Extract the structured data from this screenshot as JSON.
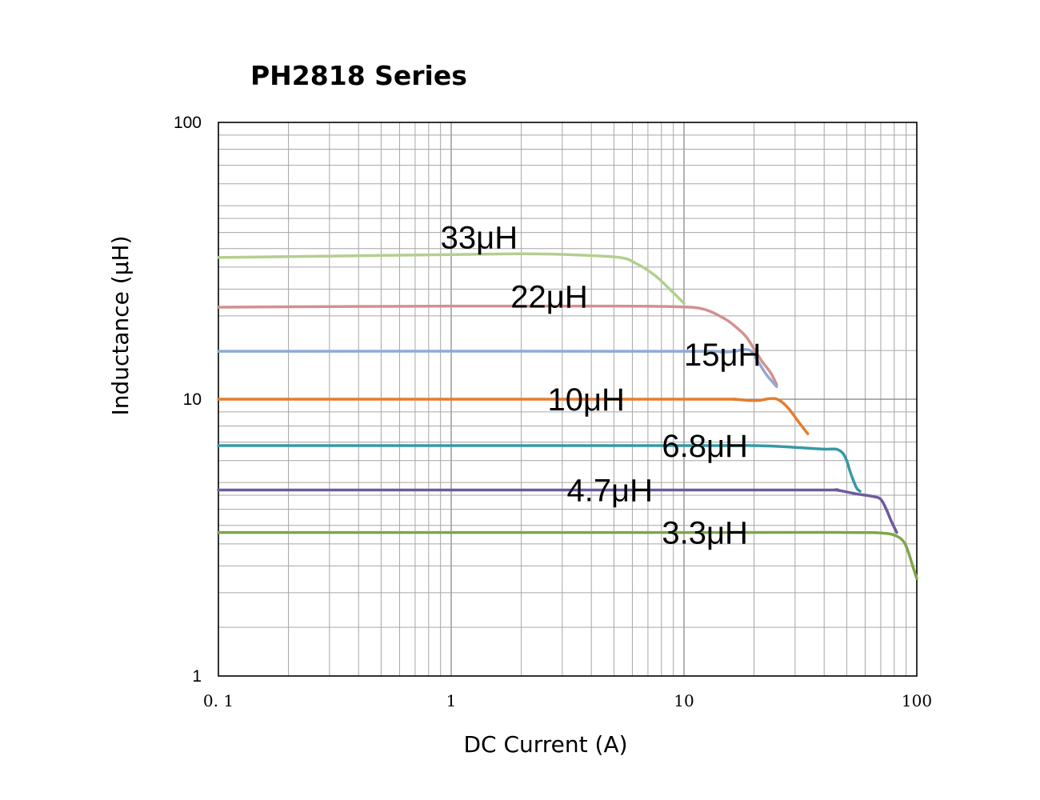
{
  "chart_data": {
    "type": "line",
    "title": "PH2818  Series",
    "xlabel": "DC Current (A)",
    "ylabel": "Inductance (μH)",
    "xscale": "log",
    "yscale": "log",
    "xlim": [
      0.1,
      100
    ],
    "ylim": [
      1,
      100
    ],
    "grid": true,
    "legend": "none",
    "x_ticks": [
      {
        "value": 0.1,
        "label": "0. 1"
      },
      {
        "value": 1,
        "label": "1"
      },
      {
        "value": 10,
        "label": "10"
      },
      {
        "value": 100,
        "label": "100"
      }
    ],
    "y_ticks": [
      {
        "value": 1,
        "label": "1"
      },
      {
        "value": 10,
        "label": "10"
      },
      {
        "value": 100,
        "label": "100"
      }
    ],
    "series": [
      {
        "name": "33μH",
        "color": "#b3cf8e",
        "label_at": {
          "x": 0.9,
          "y": 38.5
        },
        "points": [
          [
            0.1,
            32.5
          ],
          [
            1,
            33.3
          ],
          [
            2,
            33.5
          ],
          [
            3.5,
            33.2
          ],
          [
            5.3,
            32.5
          ],
          [
            6.2,
            31
          ],
          [
            7.5,
            28
          ],
          [
            8.8,
            24.7
          ],
          [
            10,
            22.2
          ]
        ]
      },
      {
        "name": "22μH",
        "color": "#d39090",
        "label_at": {
          "x": 1.8,
          "y": 23.5
        },
        "points": [
          [
            0.1,
            21.5
          ],
          [
            1,
            21.7
          ],
          [
            5,
            21.7
          ],
          [
            9,
            21.6
          ],
          [
            12,
            21.2
          ],
          [
            15,
            19.5
          ],
          [
            17,
            18
          ],
          [
            18.5,
            16.8
          ],
          [
            20,
            15.2
          ],
          [
            21.5,
            13.8
          ],
          [
            23.5,
            12.5
          ],
          [
            25,
            11.3
          ]
        ]
      },
      {
        "name": "15μH",
        "color": "#91a9d6",
        "label_at": {
          "x": 10,
          "y": 14.5
        },
        "points": [
          [
            0.1,
            14.9
          ],
          [
            10,
            14.9
          ],
          [
            14.5,
            14.8
          ],
          [
            16.5,
            14.9
          ],
          [
            18,
            15.1
          ],
          [
            19.5,
            14.9
          ],
          [
            21,
            13.5
          ],
          [
            22.7,
            12.2
          ],
          [
            25,
            11.1
          ]
        ]
      },
      {
        "name": "10μH",
        "color": "#e47c2e",
        "label_at": {
          "x": 3.8,
          "y": 10
        },
        "label_anchor": "middle",
        "points": [
          [
            0.1,
            10
          ],
          [
            10,
            10
          ],
          [
            16,
            10
          ],
          [
            19,
            9.9
          ],
          [
            21,
            9.9
          ],
          [
            23.5,
            10.05
          ],
          [
            25.5,
            9.95
          ],
          [
            28,
            9.3
          ],
          [
            31,
            8.3
          ],
          [
            34,
            7.5
          ]
        ]
      },
      {
        "name": "6.8μH",
        "color": "#3698a6",
        "label_at": {
          "x": 12.3,
          "y": 6.8
        },
        "label_anchor": "middle",
        "points": [
          [
            0.1,
            6.8
          ],
          [
            10,
            6.8
          ],
          [
            20,
            6.8
          ],
          [
            30,
            6.7
          ],
          [
            40,
            6.6
          ],
          [
            45,
            6.6
          ],
          [
            48,
            6.4
          ],
          [
            50,
            6.0
          ],
          [
            52,
            5.4
          ],
          [
            55,
            4.8
          ],
          [
            57,
            4.65
          ]
        ]
      },
      {
        "name": "4.7μH",
        "color": "#6e5a9f",
        "label_at": {
          "x": 4.8,
          "y": 4.7
        },
        "label_anchor": "middle",
        "points": [
          [
            0.1,
            4.7
          ],
          [
            10,
            4.7
          ],
          [
            40,
            4.7
          ],
          [
            45,
            4.7
          ],
          [
            55,
            4.55
          ],
          [
            65,
            4.45
          ],
          [
            70,
            4.35
          ],
          [
            74,
            4.0
          ],
          [
            78,
            3.6
          ],
          [
            82,
            3.3
          ]
        ]
      },
      {
        "name": "3.3μH",
        "color": "#7fa549",
        "label_at": {
          "x": 12.3,
          "y": 3.3
        },
        "label_anchor": "middle",
        "points": [
          [
            0.1,
            3.3
          ],
          [
            10,
            3.3
          ],
          [
            50,
            3.3
          ],
          [
            72,
            3.28
          ],
          [
            82,
            3.2
          ],
          [
            88,
            3.05
          ],
          [
            92,
            2.8
          ],
          [
            96,
            2.5
          ],
          [
            100,
            2.25
          ]
        ]
      }
    ]
  }
}
